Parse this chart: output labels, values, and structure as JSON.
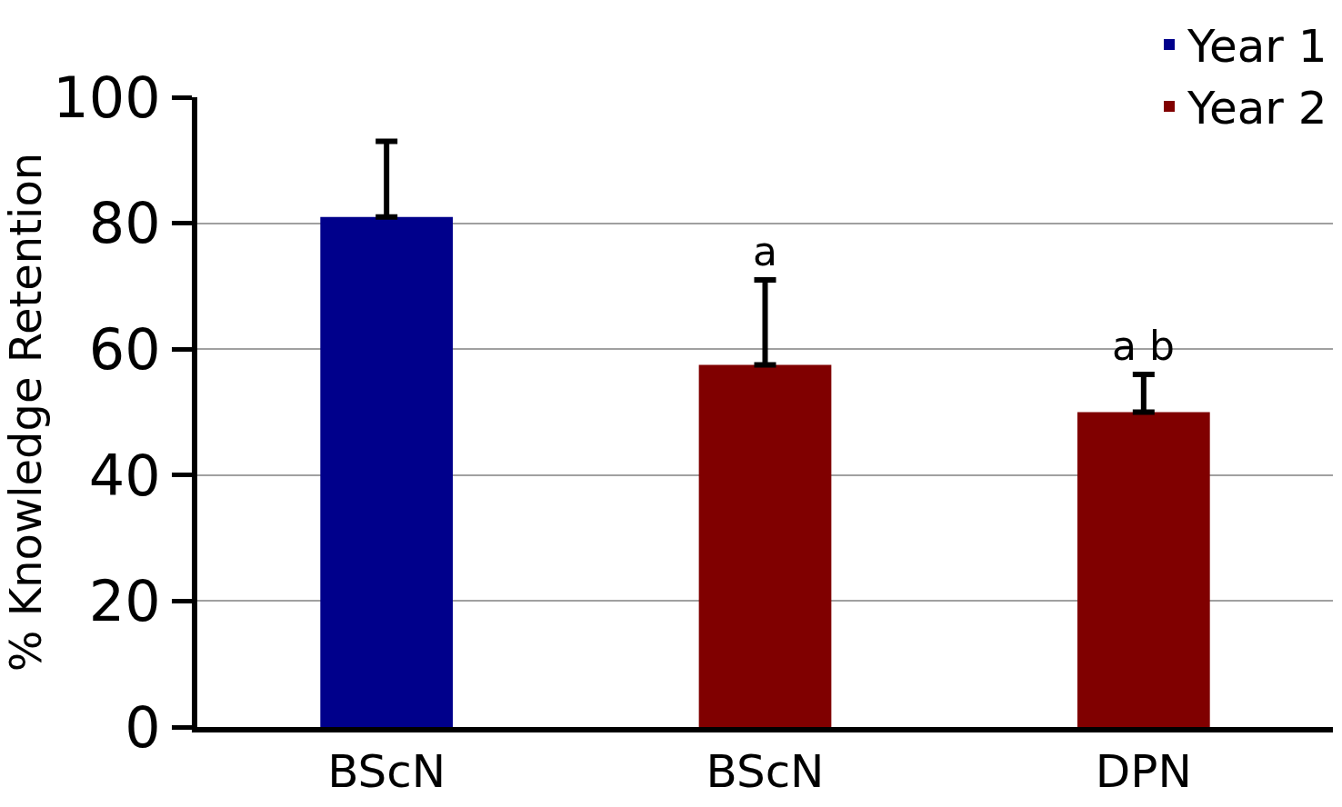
{
  "chart_data": {
    "type": "bar",
    "ylabel": "% Knowledge Retention",
    "categories": [
      "BScN",
      "BScN",
      "DPN"
    ],
    "series": [
      {
        "name": "Year 1",
        "color": "#00008b",
        "values": [
          81,
          null,
          null
        ],
        "errors": [
          12,
          null,
          null
        ]
      },
      {
        "name": "Year 2",
        "color": "#800000",
        "values": [
          null,
          57.5,
          50
        ],
        "errors": [
          null,
          13.5,
          6
        ]
      }
    ],
    "annotations": [
      "a",
      "a b"
    ],
    "ylim": [
      0,
      100
    ],
    "yticks": [
      0,
      20,
      40,
      60,
      80,
      100
    ],
    "grid": "y",
    "legend": "top right"
  }
}
